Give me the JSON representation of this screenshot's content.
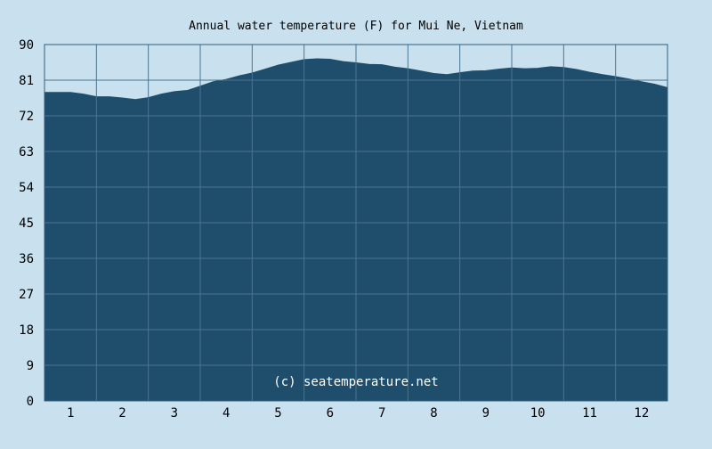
{
  "chart_data": {
    "type": "area",
    "title": "Annual water temperature (F) for Mui Ne, Vietnam",
    "xlabel": "",
    "ylabel": "",
    "ylim": [
      0,
      90
    ],
    "y_ticks": [
      "0",
      "9",
      "18",
      "27",
      "36",
      "45",
      "54",
      "63",
      "72",
      "81",
      "90"
    ],
    "x_tick_labels": [
      "1",
      "2",
      "3",
      "4",
      "5",
      "6",
      "7",
      "8",
      "9",
      "10",
      "11",
      "12"
    ],
    "xlim": [
      0,
      12
    ],
    "grid": true,
    "annotation": "(c) seatemperature.net",
    "series": [
      {
        "x": [
          0,
          0.25,
          0.5,
          0.75,
          1.0,
          1.25,
          1.5,
          1.75,
          2.0,
          2.25,
          2.5,
          2.75,
          3.0,
          3.25,
          3.5,
          3.75,
          4.0,
          4.25,
          4.5,
          4.75,
          5.0,
          5.25,
          5.5,
          5.75,
          6.0,
          6.25,
          6.5,
          6.75,
          7.0,
          7.25,
          7.5,
          7.75,
          8.0,
          8.25,
          8.5,
          8.75,
          9.0,
          9.25,
          9.5,
          9.75,
          10.0,
          10.25,
          10.5,
          10.75,
          11.0,
          11.25,
          11.5,
          11.75,
          12.0
        ],
        "values": [
          77.9,
          77.9,
          77.9,
          77.5,
          76.8,
          76.8,
          76.5,
          76.1,
          76.6,
          77.5,
          78.1,
          78.4,
          79.5,
          80.6,
          81.2,
          82.1,
          82.8,
          83.8,
          84.8,
          85.5,
          86.2,
          86.4,
          86.3,
          85.7,
          85.4,
          85.0,
          84.9,
          84.3,
          83.9,
          83.3,
          82.7,
          82.4,
          82.9,
          83.3,
          83.4,
          83.8,
          84.1,
          83.9,
          84.0,
          84.4,
          84.2,
          83.7,
          83.0,
          82.4,
          81.9,
          81.3,
          80.6,
          80.0,
          79.1
        ]
      }
    ],
    "colors": {
      "background": "#c9e0ee",
      "plot_fill": "#1e4e6b",
      "grid": "#4a7590",
      "axis": "#2d5f7e",
      "text": "#000000",
      "watermark": "#ffffff"
    }
  }
}
